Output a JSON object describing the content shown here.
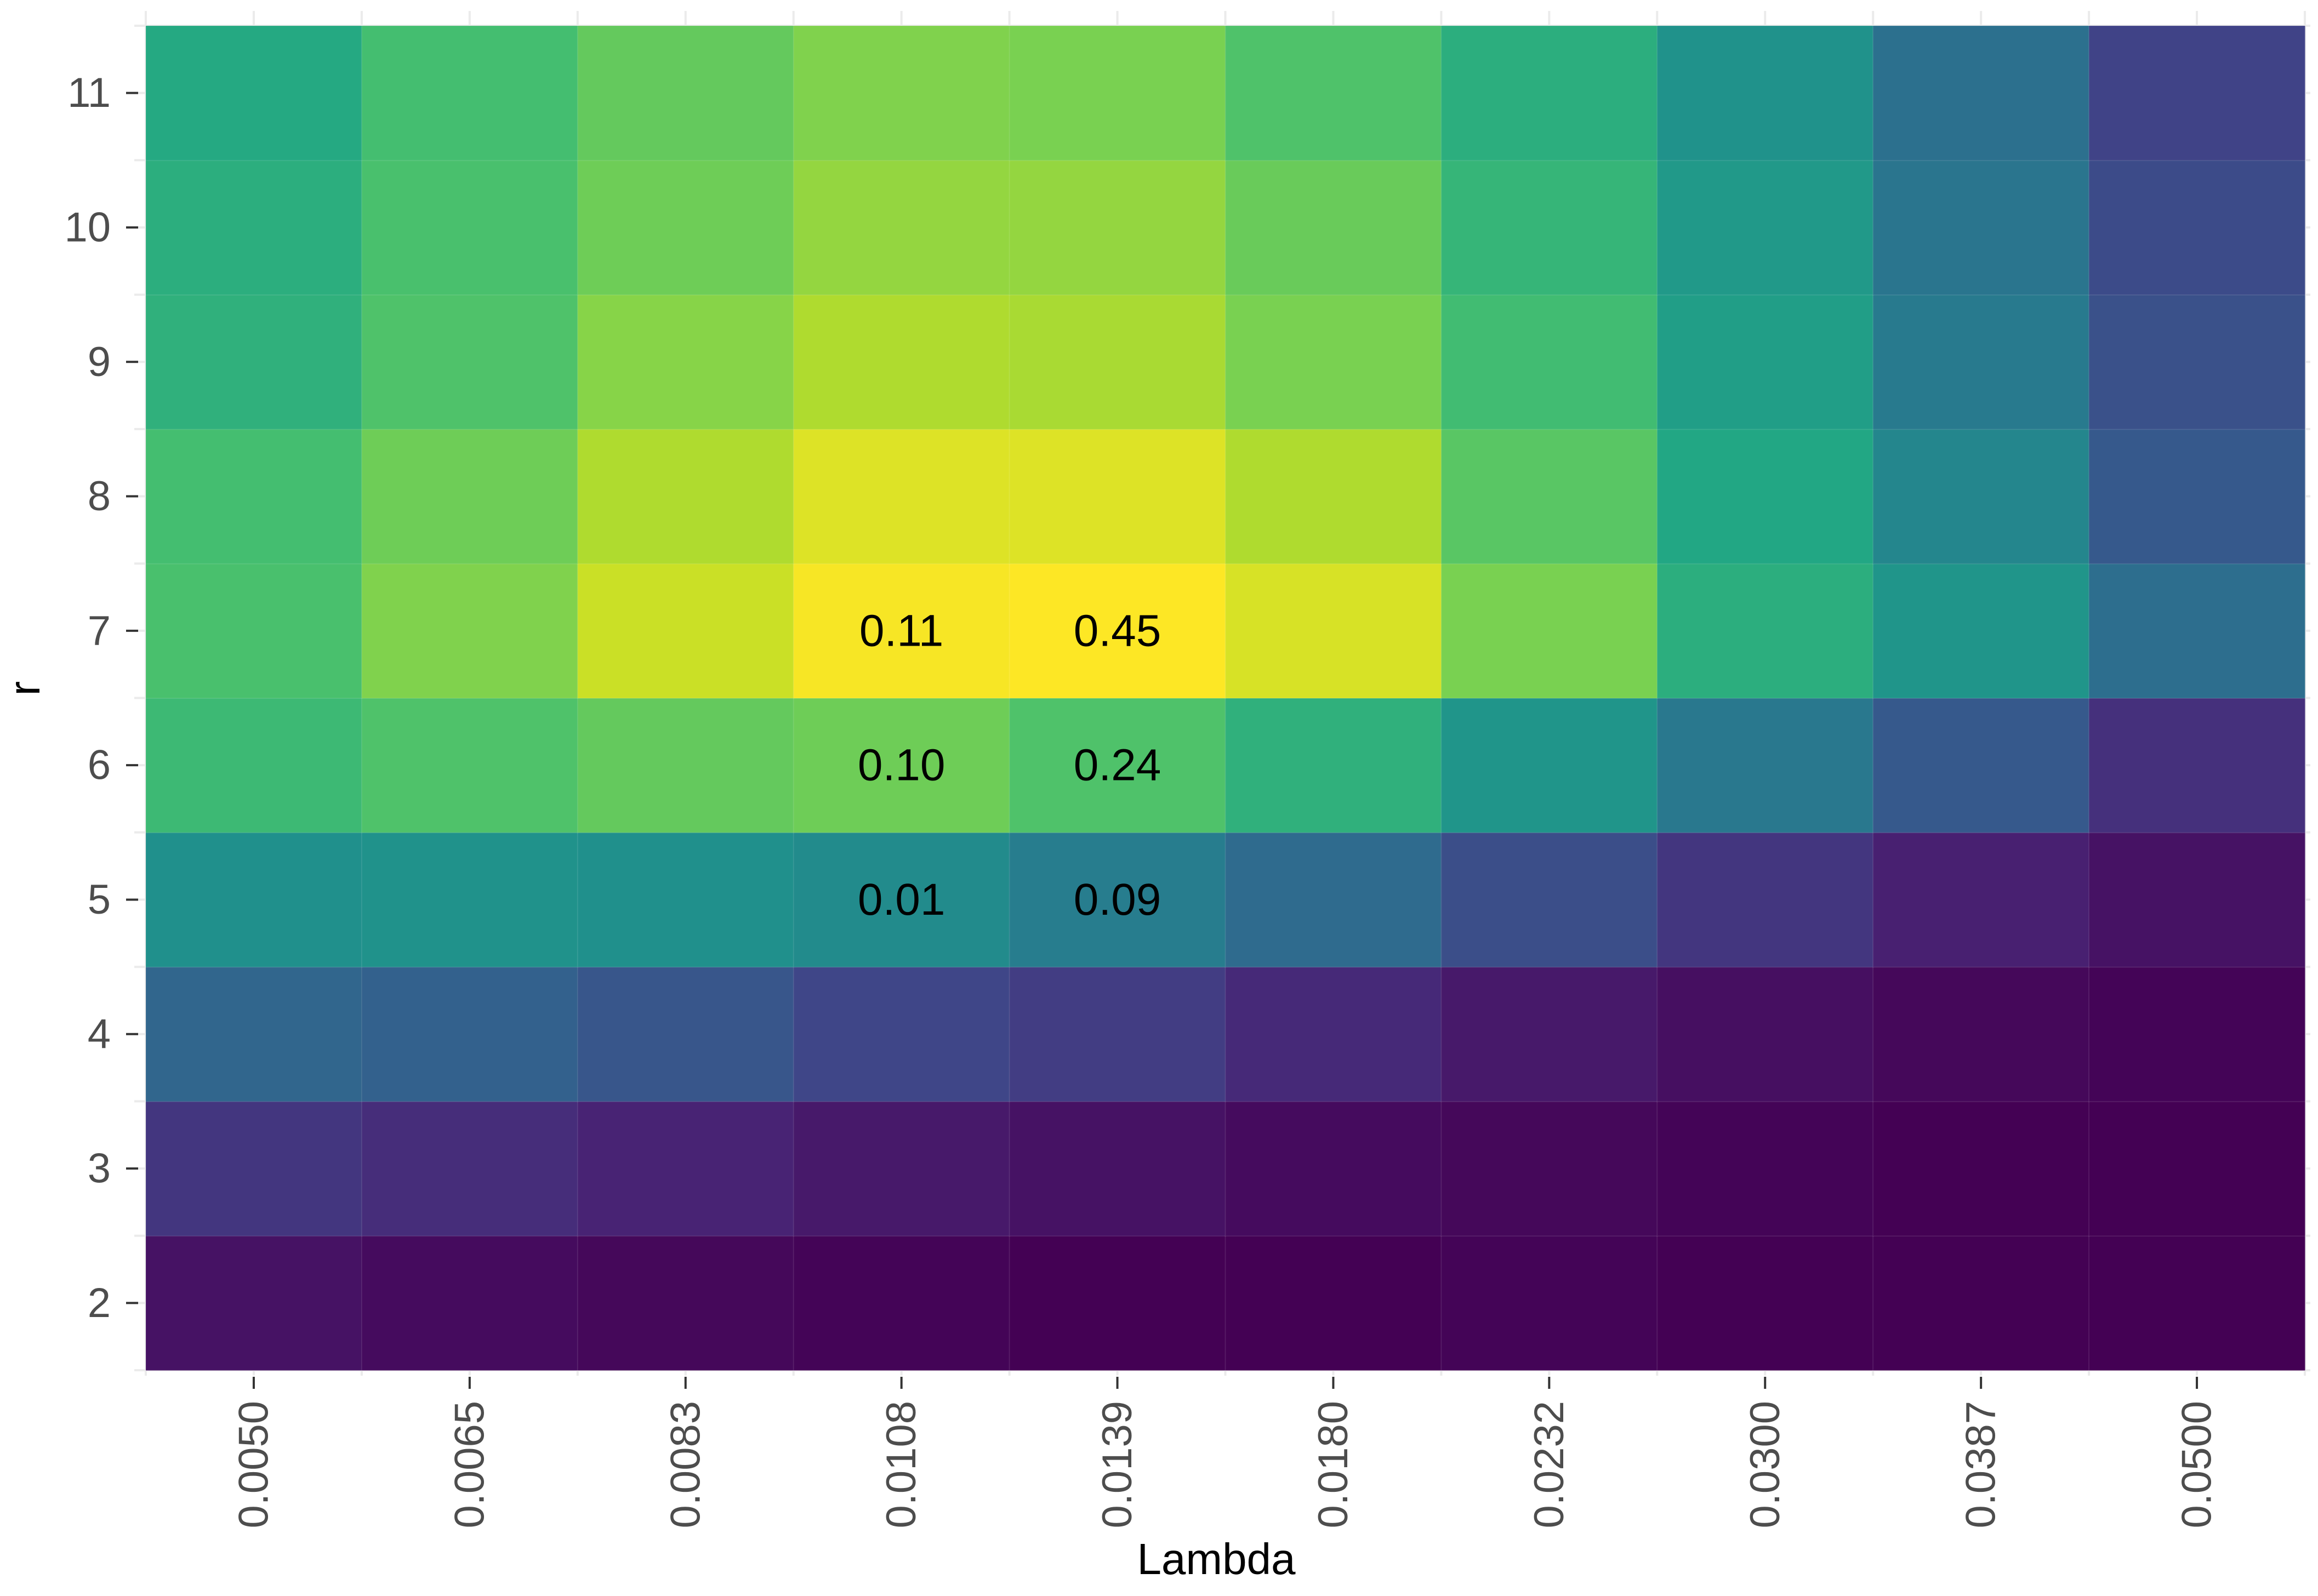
{
  "chart_data": {
    "type": "heatmap",
    "title": "",
    "xlabel": "Lambda",
    "ylabel": "r",
    "x_categories": [
      "0.0050",
      "0.0065",
      "0.0083",
      "0.0108",
      "0.0139",
      "0.0180",
      "0.0232",
      "0.0300",
      "0.0387",
      "0.0500"
    ],
    "y_categories": [
      "2",
      "3",
      "4",
      "5",
      "6",
      "7",
      "8",
      "9",
      "10",
      "11"
    ],
    "color_scale": "viridis",
    "legend": "none",
    "grid": true,
    "values": [
      [
        0.05,
        0.03,
        0.02,
        0.01,
        0.0,
        0.0,
        0.01,
        0.0,
        0.0,
        0.0
      ],
      [
        0.16,
        0.13,
        0.1,
        0.07,
        0.05,
        0.03,
        0.02,
        0.01,
        0.0,
        0.0
      ],
      [
        0.33,
        0.31,
        0.27,
        0.21,
        0.18,
        0.12,
        0.07,
        0.04,
        0.02,
        0.01
      ],
      [
        0.5,
        0.51,
        0.5,
        0.48,
        0.42,
        0.35,
        0.24,
        0.16,
        0.09,
        0.05
      ],
      [
        0.68,
        0.72,
        0.76,
        0.78,
        0.72,
        0.64,
        0.52,
        0.4,
        0.28,
        0.14
      ],
      [
        0.71,
        0.81,
        0.92,
        0.99,
        1.0,
        0.94,
        0.8,
        0.63,
        0.52,
        0.36
      ],
      [
        0.7,
        0.78,
        0.88,
        0.95,
        0.95,
        0.88,
        0.74,
        0.6,
        0.46,
        0.28
      ],
      [
        0.64,
        0.72,
        0.82,
        0.88,
        0.87,
        0.8,
        0.69,
        0.56,
        0.41,
        0.25
      ],
      [
        0.63,
        0.71,
        0.78,
        0.84,
        0.84,
        0.77,
        0.66,
        0.54,
        0.39,
        0.23
      ],
      [
        0.61,
        0.7,
        0.76,
        0.81,
        0.8,
        0.72,
        0.63,
        0.51,
        0.37,
        0.2
      ]
    ],
    "annotations": [
      {
        "x": "0.0108",
        "y": "7",
        "text": "0.11"
      },
      {
        "x": "0.0139",
        "y": "7",
        "text": "0.45"
      },
      {
        "x": "0.0108",
        "y": "6",
        "text": "0.10"
      },
      {
        "x": "0.0139",
        "y": "6",
        "text": "0.24"
      },
      {
        "x": "0.0108",
        "y": "5",
        "text": "0.01"
      },
      {
        "x": "0.0139",
        "y": "5",
        "text": "0.09"
      }
    ]
  }
}
